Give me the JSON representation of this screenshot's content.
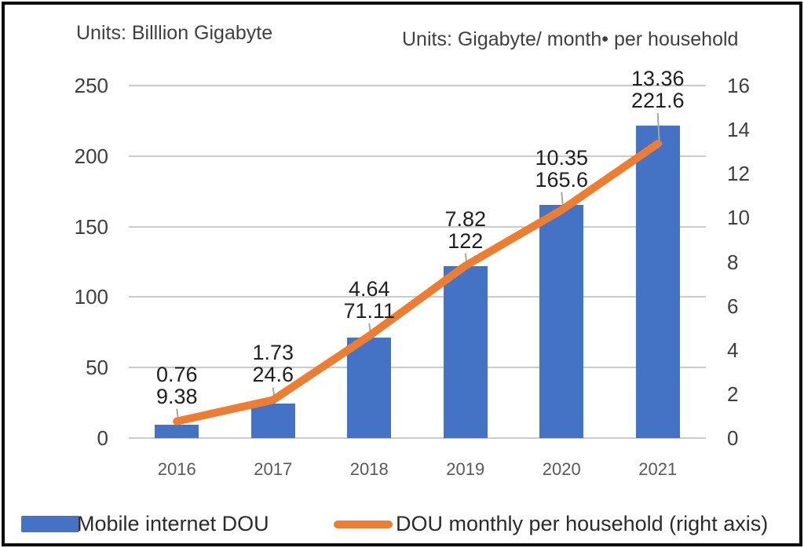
{
  "titles": {
    "left": "Units: Billlion Gigabyte",
    "right": "Units: Gigabyte/ month• per household"
  },
  "chart_data": {
    "type": "combo_bar_line",
    "categories": [
      "2016",
      "2017",
      "2018",
      "2019",
      "2020",
      "2021"
    ],
    "series": [
      {
        "name": "Mobile internet DOU",
        "type": "bar",
        "axis": "left",
        "color": "#4472C4",
        "values": [
          9.38,
          24.6,
          71.11,
          122,
          165.6,
          221.6
        ],
        "labels": [
          "9.38",
          "24.6",
          "71.11",
          "122",
          "165.6",
          "221.6"
        ]
      },
      {
        "name": "DOU monthly per household (right axis)",
        "type": "line",
        "axis": "right",
        "color": "#ED7D31",
        "values": [
          0.76,
          1.73,
          4.64,
          7.82,
          10.35,
          13.36
        ],
        "labels": [
          "0.76",
          "1.73",
          "4.64",
          "7.82",
          "10.35",
          "13.36"
        ]
      }
    ],
    "left_axis": {
      "title": "Units: Billlion Gigabyte",
      "min": 0,
      "max": 250,
      "ticks": [
        0,
        50,
        100,
        150,
        200,
        250
      ]
    },
    "right_axis": {
      "title": "Units: Gigabyte/ month• per household",
      "min": 0,
      "max": 16,
      "ticks": [
        0,
        2,
        4,
        6,
        8,
        10,
        12,
        14,
        16
      ]
    },
    "grid": true,
    "legend_position": "bottom",
    "colors": {
      "bar": "#4472C4",
      "line": "#ED7D31",
      "gridline": "#cbcbcb",
      "tick_text": "#3f3f3f",
      "year_text": "#595959",
      "data_label_text": "#1f1f1f",
      "leader_line": "#a6a6a6"
    }
  },
  "legend": {
    "items": [
      {
        "label": "Mobile internet DOU",
        "swatch": "bar-swatch",
        "color": "#4472C4"
      },
      {
        "label": "DOU monthly per household (right axis)",
        "swatch": "line-swatch",
        "color": "#ED7D31"
      }
    ]
  }
}
